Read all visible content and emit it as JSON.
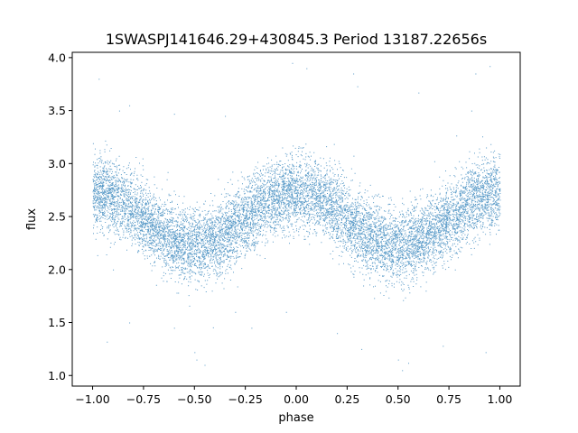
{
  "chart_data": {
    "type": "scatter",
    "title": "1SWASPJ141646.29+430845.3 Period 13187.22656s",
    "xlabel": "phase",
    "ylabel": "flux",
    "xlim": [
      -1.1,
      1.1
    ],
    "ylim": [
      0.9,
      4.05
    ],
    "xticks": [
      -1.0,
      -0.75,
      -0.5,
      -0.25,
      0.0,
      0.25,
      0.5,
      0.75,
      1.0
    ],
    "xtick_labels": [
      "−1.00",
      "−0.75",
      "−0.50",
      "−0.25",
      "0.00",
      "0.25",
      "0.50",
      "0.75",
      "1.00"
    ],
    "yticks": [
      1.0,
      1.5,
      2.0,
      2.5,
      3.0,
      3.5,
      4.0
    ],
    "ytick_labels": [
      "1.0",
      "1.5",
      "2.0",
      "2.5",
      "3.0",
      "3.5",
      "4.0"
    ],
    "grid": false,
    "color": "#1f77b4",
    "model": {
      "description": "sinusoidal folded light curve, two cycles over phase -1..1",
      "mean_flux": 2.48,
      "semi_amplitude": 0.25,
      "maxima_phase": [
        -1.0,
        0.0,
        1.0
      ],
      "minima_phase": [
        -0.5,
        0.5
      ],
      "scatter_sigma": 0.17,
      "n_points_approx": 11000
    },
    "outliers": [
      [
        -0.97,
        3.8
      ],
      [
        -0.82,
        3.55
      ],
      [
        -0.87,
        3.5
      ],
      [
        -0.6,
        3.47
      ],
      [
        -0.35,
        3.45
      ],
      [
        -0.02,
        3.95
      ],
      [
        0.05,
        3.9
      ],
      [
        0.3,
        3.73
      ],
      [
        0.28,
        3.85
      ],
      [
        0.6,
        3.67
      ],
      [
        0.86,
        3.5
      ],
      [
        0.88,
        3.85
      ],
      [
        0.95,
        3.92
      ],
      [
        -0.9,
        2.0
      ],
      [
        -0.82,
        1.5
      ],
      [
        -0.6,
        1.45
      ],
      [
        -0.5,
        1.22
      ],
      [
        -0.49,
        1.15
      ],
      [
        -0.45,
        1.1
      ],
      [
        -0.3,
        1.6
      ],
      [
        -0.22,
        1.45
      ],
      [
        -0.05,
        1.6
      ],
      [
        0.2,
        1.4
      ],
      [
        0.32,
        1.25
      ],
      [
        0.5,
        1.15
      ],
      [
        0.52,
        1.05
      ],
      [
        0.55,
        1.12
      ],
      [
        0.72,
        1.28
      ],
      [
        0.93,
        1.22
      ],
      [
        -0.93,
        1.32
      ]
    ]
  }
}
